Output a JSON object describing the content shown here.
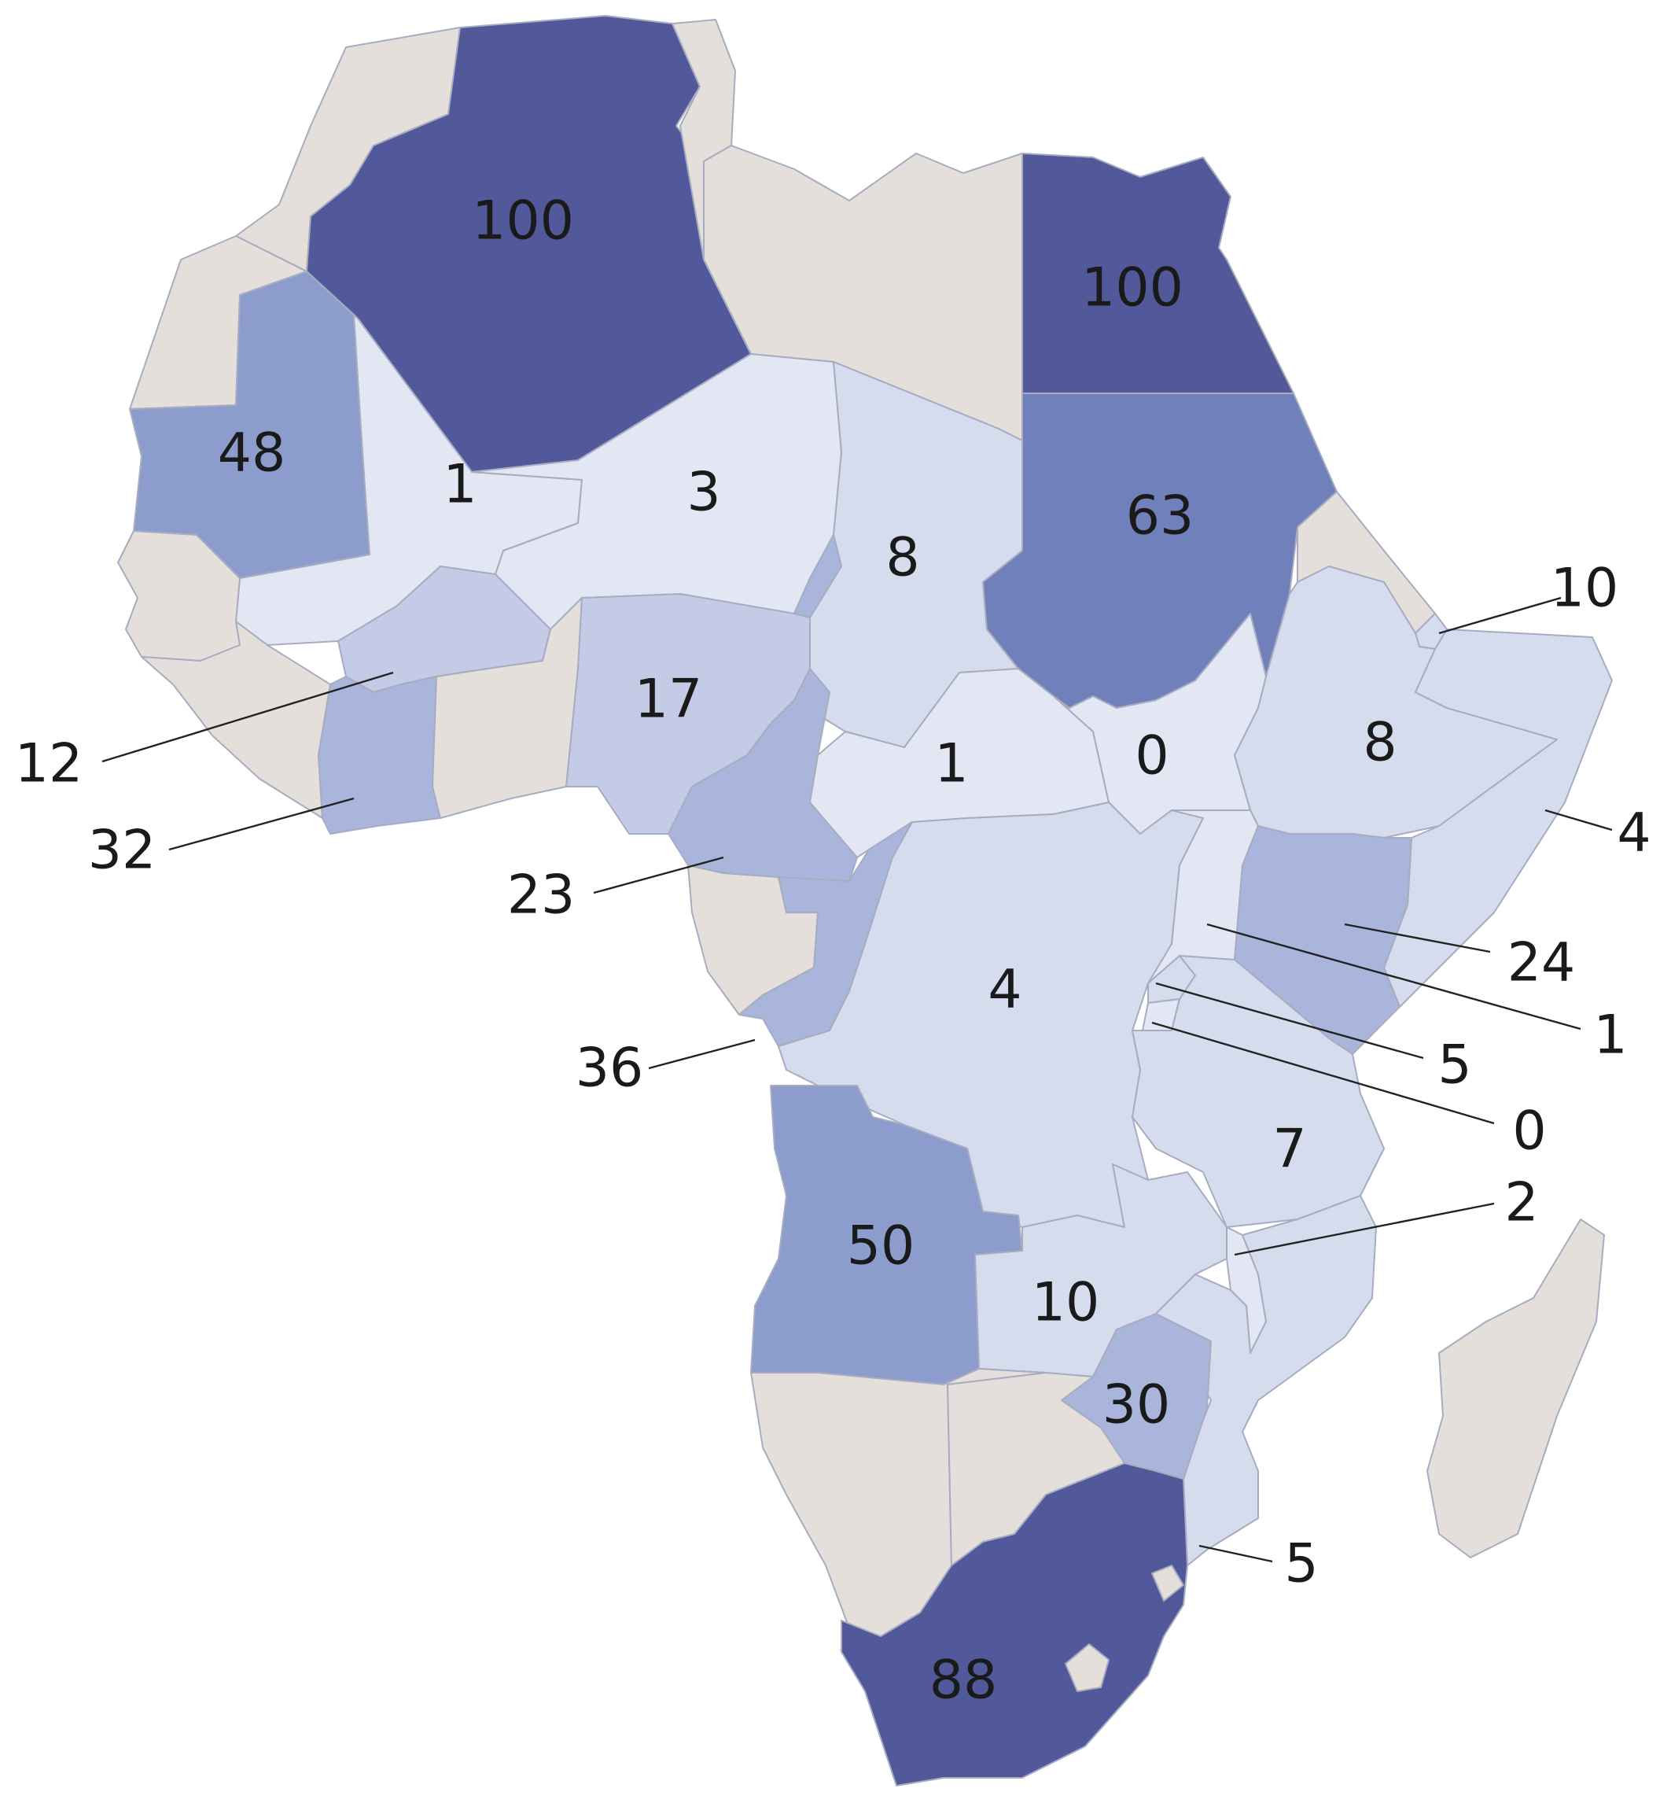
{
  "colors": {
    "no_data": "#e4dfda",
    "scale": [
      "#e2e7f3",
      "#d5dcee",
      "#c3cbe6",
      "#a9b5db",
      "#8c9dcd",
      "#6f80ba",
      "#51599b"
    ],
    "water": "#ffffff"
  },
  "regions": [
    {
      "id": "morocco",
      "value": null
    },
    {
      "id": "western-sahara",
      "value": null
    },
    {
      "id": "algeria",
      "value": 100
    },
    {
      "id": "tunisia",
      "value": null
    },
    {
      "id": "libya",
      "value": null
    },
    {
      "id": "egypt",
      "value": 100
    },
    {
      "id": "mauritania",
      "value": 48
    },
    {
      "id": "mali",
      "value": 1
    },
    {
      "id": "niger",
      "value": 3
    },
    {
      "id": "chad",
      "value": 8
    },
    {
      "id": "sudan",
      "value": 63
    },
    {
      "id": "eritrea",
      "value": null
    },
    {
      "id": "djibouti",
      "value": 10
    },
    {
      "id": "senegal",
      "value": null
    },
    {
      "id": "guinea",
      "value": null
    },
    {
      "id": "burkina-faso",
      "value": 12
    },
    {
      "id": "cote-divoire",
      "value": 32
    },
    {
      "id": "ghana-togo-benin",
      "value": null
    },
    {
      "id": "nigeria",
      "value": 17
    },
    {
      "id": "cameroon",
      "value": 23
    },
    {
      "id": "car",
      "value": 1
    },
    {
      "id": "south-sudan",
      "value": 0
    },
    {
      "id": "ethiopia",
      "value": 8
    },
    {
      "id": "somalia",
      "value": 4
    },
    {
      "id": "gabon",
      "value": null
    },
    {
      "id": "congo",
      "value": 36
    },
    {
      "id": "drc",
      "value": 4
    },
    {
      "id": "uganda",
      "value": 1
    },
    {
      "id": "kenya",
      "value": 24
    },
    {
      "id": "rwanda",
      "value": 5
    },
    {
      "id": "burundi",
      "value": 0
    },
    {
      "id": "tanzania",
      "value": 7
    },
    {
      "id": "angola",
      "value": 50
    },
    {
      "id": "zambia",
      "value": 10
    },
    {
      "id": "malawi",
      "value": 2
    },
    {
      "id": "mozambique",
      "value": 5
    },
    {
      "id": "zimbabwe",
      "value": 30
    },
    {
      "id": "namibia",
      "value": null
    },
    {
      "id": "botswana",
      "value": null
    },
    {
      "id": "south-africa",
      "value": 88
    },
    {
      "id": "lesotho",
      "value": null
    },
    {
      "id": "eswatini",
      "value": null
    },
    {
      "id": "madagascar",
      "value": null
    }
  ],
  "labels": [
    {
      "region": "algeria",
      "text": "100"
    },
    {
      "region": "egypt",
      "text": "100"
    },
    {
      "region": "mauritania",
      "text": "48"
    },
    {
      "region": "mali",
      "text": "1"
    },
    {
      "region": "niger",
      "text": "3"
    },
    {
      "region": "chad",
      "text": "8"
    },
    {
      "region": "sudan",
      "text": "63"
    },
    {
      "region": "djibouti",
      "text": "10"
    },
    {
      "region": "burkina-faso",
      "text": "12"
    },
    {
      "region": "cote-divoire",
      "text": "32"
    },
    {
      "region": "nigeria",
      "text": "17"
    },
    {
      "region": "car",
      "text": "1"
    },
    {
      "region": "south-sudan",
      "text": "0"
    },
    {
      "region": "ethiopia",
      "text": "8"
    },
    {
      "region": "somalia",
      "text": "4"
    },
    {
      "region": "cameroon",
      "text": "23"
    },
    {
      "region": "kenya",
      "text": "24"
    },
    {
      "region": "drc",
      "text": "4"
    },
    {
      "region": "uganda",
      "text": "1"
    },
    {
      "region": "congo",
      "text": "36"
    },
    {
      "region": "rwanda",
      "text": "5"
    },
    {
      "region": "burundi",
      "text": "0"
    },
    {
      "region": "tanzania",
      "text": "7"
    },
    {
      "region": "malawi",
      "text": "2"
    },
    {
      "region": "angola",
      "text": "50"
    },
    {
      "region": "zambia",
      "text": "10"
    },
    {
      "region": "zimbabwe",
      "text": "30"
    },
    {
      "region": "mozambique",
      "text": "5"
    },
    {
      "region": "south-africa",
      "text": "88"
    }
  ]
}
